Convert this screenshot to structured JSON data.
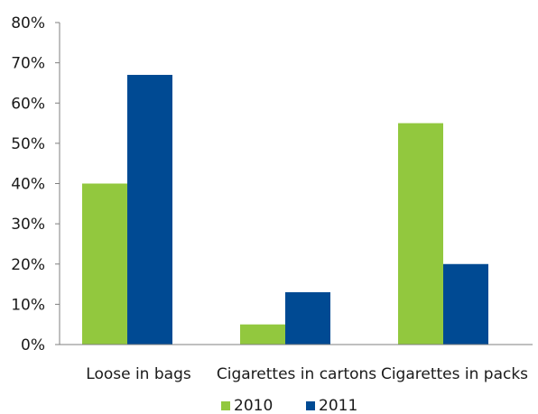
{
  "chart_data": {
    "type": "bar",
    "title": "",
    "xlabel": "",
    "ylabel": "",
    "categories": [
      "Loose in bags",
      "Cigarettes in cartons",
      "Cigarettes in packs"
    ],
    "series": [
      {
        "name": "2010",
        "values": [
          40,
          5,
          55
        ],
        "color": "#92c83e"
      },
      {
        "name": "2011",
        "values": [
          67,
          13,
          20
        ],
        "color": "#004a93"
      }
    ],
    "ylim": [
      0,
      80
    ],
    "yticks": [
      0,
      10,
      20,
      30,
      40,
      50,
      60,
      70,
      80
    ],
    "ytick_labels": [
      "0%",
      "10%",
      "20%",
      "30%",
      "40%",
      "50%",
      "60%",
      "70%",
      "80%"
    ],
    "grid": false,
    "legend_position": "bottom-center"
  }
}
